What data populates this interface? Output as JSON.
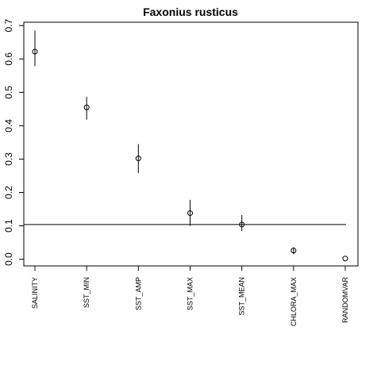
{
  "chart_data": {
    "type": "scatter",
    "title": "Faxonius rusticus",
    "xlabel": "",
    "ylabel": "",
    "ylim": [
      -0.02,
      0.71
    ],
    "yticks": [
      "0.0",
      "0.1",
      "0.2",
      "0.3",
      "0.4",
      "0.5",
      "0.6",
      "0.7"
    ],
    "categories": [
      "SALINITY",
      "SST_MIN",
      "SST_AMP",
      "SST_MAX",
      "SST_MEAN",
      "CHLORA_MAX",
      "RANDOMVAR"
    ],
    "values": [
      0.622,
      0.455,
      0.302,
      0.138,
      0.104,
      0.026,
      0.002
    ],
    "lower": [
      0.578,
      0.418,
      0.258,
      0.1,
      0.085,
      0.015,
      0.002
    ],
    "upper": [
      0.685,
      0.487,
      0.345,
      0.178,
      0.132,
      0.036,
      0.002
    ],
    "reference_line": 0.104,
    "grid": false
  }
}
